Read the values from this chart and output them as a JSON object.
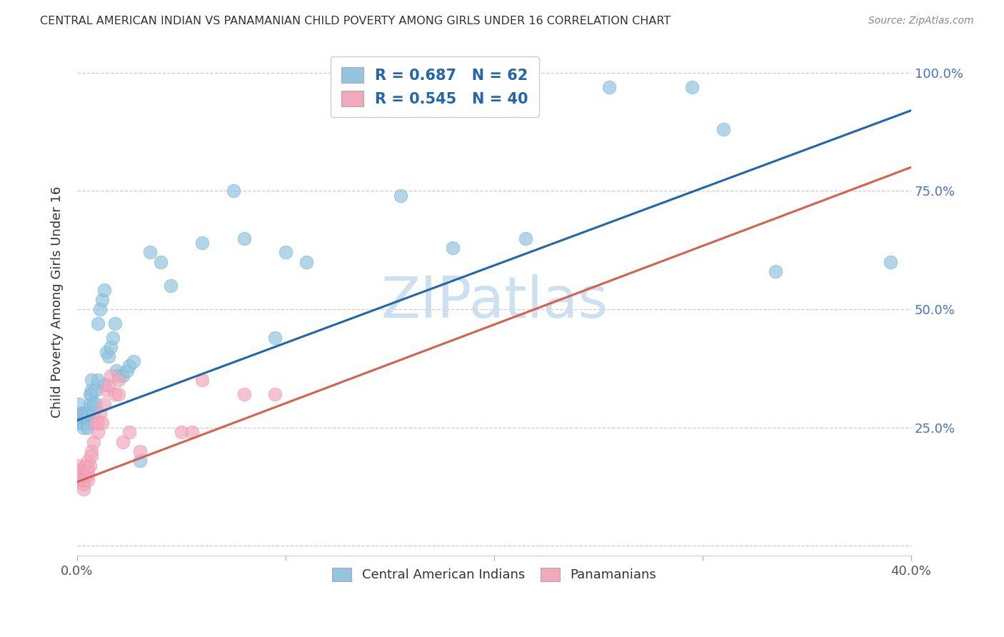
{
  "title": "CENTRAL AMERICAN INDIAN VS PANAMANIAN CHILD POVERTY AMONG GIRLS UNDER 16 CORRELATION CHART",
  "source": "Source: ZipAtlas.com",
  "ylabel": "Child Poverty Among Girls Under 16",
  "xlim": [
    0.0,
    0.4
  ],
  "ylim": [
    -0.02,
    1.05
  ],
  "xticks": [
    0.0,
    0.1,
    0.2,
    0.3,
    0.4
  ],
  "xticklabels": [
    "0.0%",
    "",
    "",
    "",
    "40.0%"
  ],
  "yticks": [
    0.0,
    0.25,
    0.5,
    0.75,
    1.0
  ],
  "yticklabels": [
    "",
    "25.0%",
    "50.0%",
    "75.0%",
    "100.0%"
  ],
  "blue_R": "0.687",
  "blue_N": "62",
  "pink_R": "0.545",
  "pink_N": "40",
  "blue_color": "#92c5de",
  "pink_color": "#f4a8bc",
  "blue_line_color": "#2166ac",
  "pink_line_color": "#d6604d",
  "watermark": "ZIPatlas",
  "watermark_color": "#cce0f0",
  "blue_scatter_x": [
    0.001,
    0.001,
    0.001,
    0.002,
    0.002,
    0.002,
    0.002,
    0.003,
    0.003,
    0.003,
    0.003,
    0.004,
    0.004,
    0.005,
    0.005,
    0.005,
    0.005,
    0.006,
    0.006,
    0.006,
    0.007,
    0.007,
    0.007,
    0.008,
    0.008,
    0.009,
    0.009,
    0.01,
    0.01,
    0.011,
    0.012,
    0.013,
    0.013,
    0.014,
    0.015,
    0.016,
    0.017,
    0.018,
    0.019,
    0.02,
    0.022,
    0.024,
    0.025,
    0.027,
    0.03,
    0.035,
    0.04,
    0.045,
    0.06,
    0.075,
    0.08,
    0.095,
    0.1,
    0.11,
    0.155,
    0.18,
    0.215,
    0.255,
    0.295,
    0.31,
    0.335,
    0.39
  ],
  "blue_scatter_y": [
    0.3,
    0.27,
    0.26,
    0.28,
    0.27,
    0.28,
    0.26,
    0.26,
    0.27,
    0.28,
    0.25,
    0.28,
    0.27,
    0.26,
    0.27,
    0.25,
    0.28,
    0.29,
    0.32,
    0.3,
    0.33,
    0.32,
    0.35,
    0.3,
    0.28,
    0.33,
    0.3,
    0.35,
    0.47,
    0.5,
    0.52,
    0.54,
    0.34,
    0.41,
    0.4,
    0.42,
    0.44,
    0.47,
    0.37,
    0.36,
    0.36,
    0.37,
    0.38,
    0.39,
    0.18,
    0.62,
    0.6,
    0.55,
    0.64,
    0.75,
    0.65,
    0.44,
    0.62,
    0.6,
    0.74,
    0.63,
    0.65,
    0.97,
    0.97,
    0.88,
    0.58,
    0.6
  ],
  "pink_scatter_x": [
    0.001,
    0.001,
    0.001,
    0.002,
    0.002,
    0.002,
    0.003,
    0.003,
    0.003,
    0.004,
    0.004,
    0.004,
    0.005,
    0.005,
    0.005,
    0.005,
    0.006,
    0.007,
    0.007,
    0.008,
    0.009,
    0.01,
    0.01,
    0.011,
    0.012,
    0.013,
    0.014,
    0.015,
    0.016,
    0.018,
    0.02,
    0.02,
    0.022,
    0.025,
    0.03,
    0.05,
    0.055,
    0.06,
    0.08,
    0.095
  ],
  "pink_scatter_y": [
    0.14,
    0.16,
    0.17,
    0.14,
    0.15,
    0.16,
    0.12,
    0.13,
    0.14,
    0.15,
    0.16,
    0.17,
    0.14,
    0.15,
    0.16,
    0.18,
    0.17,
    0.2,
    0.19,
    0.22,
    0.26,
    0.24,
    0.26,
    0.28,
    0.26,
    0.3,
    0.33,
    0.34,
    0.36,
    0.32,
    0.32,
    0.35,
    0.22,
    0.24,
    0.2,
    0.24,
    0.24,
    0.35,
    0.32,
    0.32
  ],
  "blue_line_x0": 0.0,
  "blue_line_y0": 0.265,
  "blue_line_x1": 0.4,
  "blue_line_y1": 0.92,
  "pink_line_x0": 0.0,
  "pink_line_y0": 0.135,
  "pink_line_x1": 0.4,
  "pink_line_y1": 0.8
}
